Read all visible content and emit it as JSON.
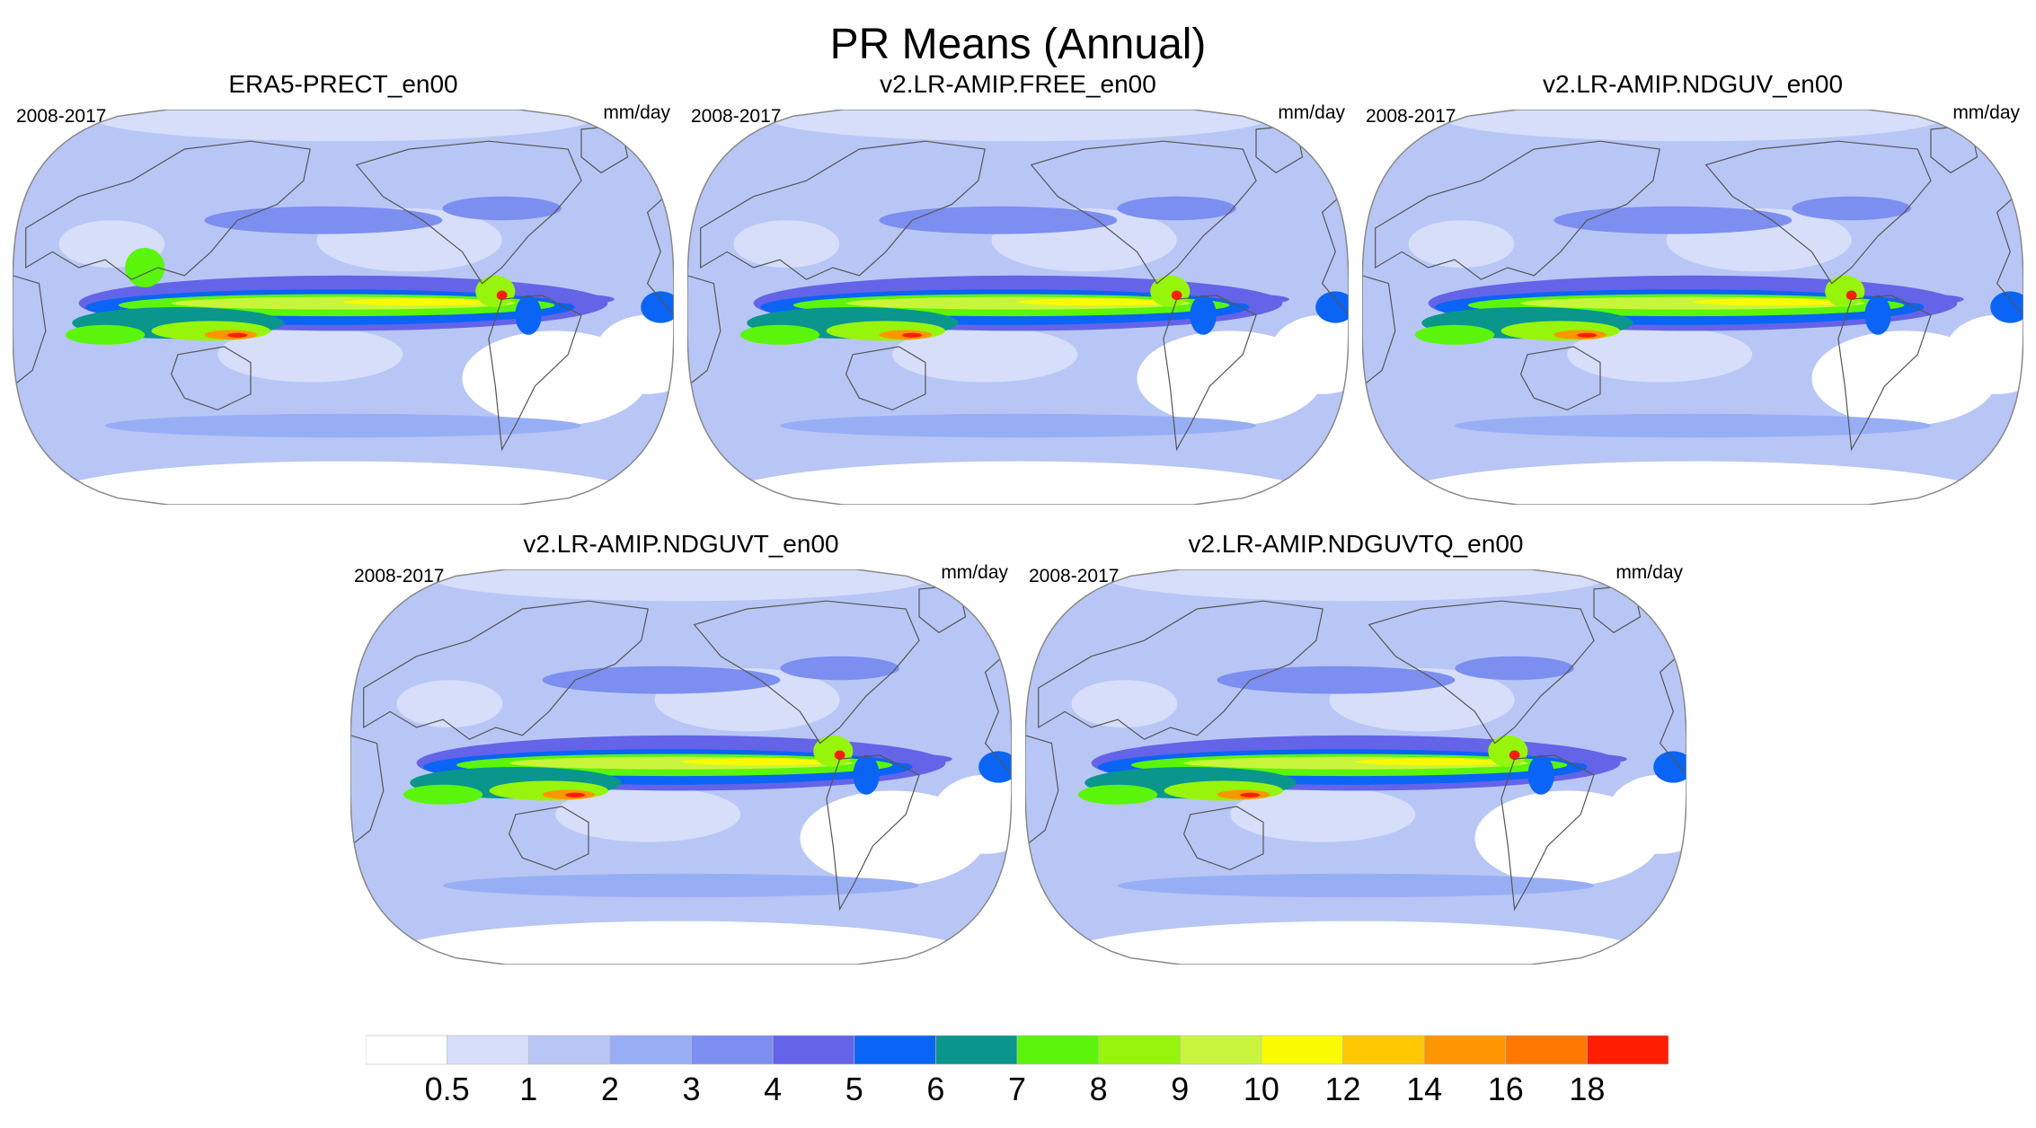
{
  "chart_data": {
    "type": "heatmap",
    "title": "PR Means (Annual)",
    "projection": "Robinson (Pacific-centered)",
    "panels": [
      {
        "title": "ERA5-PRECT_en00",
        "period": "2008-2017",
        "units": "mm/day"
      },
      {
        "title": "v2.LR-AMIP.FREE_en00",
        "period": "2008-2017",
        "units": "mm/day"
      },
      {
        "title": "v2.LR-AMIP.NDGUV_en00",
        "period": "2008-2017",
        "units": "mm/day"
      },
      {
        "title": "v2.LR-AMIP.NDGUVT_en00",
        "period": "2008-2017",
        "units": "mm/day"
      },
      {
        "title": "v2.LR-AMIP.NDGUVTQ_en00",
        "period": "2008-2017",
        "units": "mm/day"
      }
    ],
    "colorbar": {
      "levels": [
        "0.5",
        "1",
        "2",
        "3",
        "4",
        "5",
        "6",
        "7",
        "8",
        "9",
        "10",
        "12",
        "14",
        "16",
        "18"
      ],
      "colors": [
        "#ffffff",
        "#d6defa",
        "#b8c6f6",
        "#98aef4",
        "#7c8ef0",
        "#6464e8",
        "#0a64f5",
        "#0a968c",
        "#5af50a",
        "#96f50a",
        "#c8f53c",
        "#fafa00",
        "#ffc800",
        "#ff9600",
        "#ff7800",
        "#ff1e00"
      ]
    }
  }
}
